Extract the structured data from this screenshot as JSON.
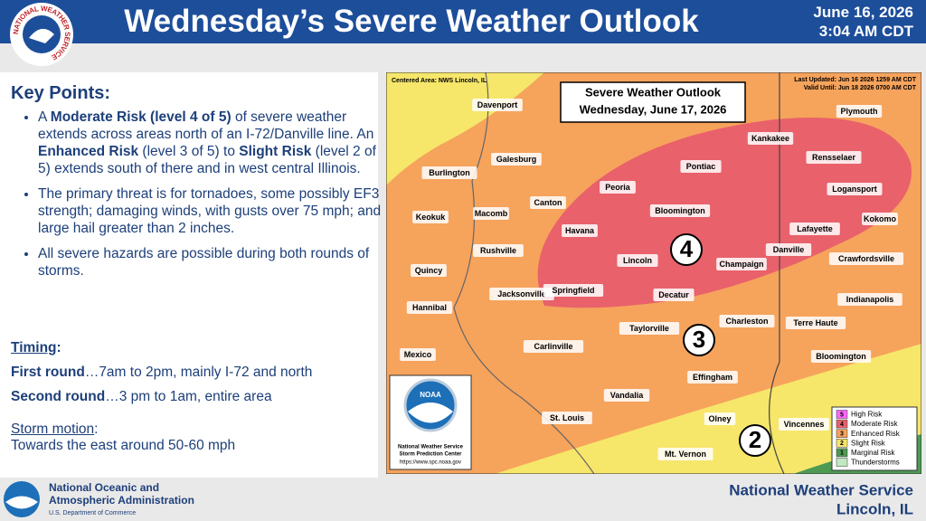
{
  "header": {
    "logo_text": "NATIONAL WEATHER SERVICE",
    "title": "Wednesday’s Severe Weather Outlook",
    "date": "June 16, 2026",
    "time": "3:04 AM CDT"
  },
  "key_points": {
    "heading": "Key Points:",
    "bullets": [
      [
        {
          "text": "A ",
          "bold": false
        },
        {
          "text": "Moderate Risk (level 4 of 5)",
          "bold": true
        },
        {
          "text": " of severe weather extends across areas north of an I-72/Danville line. An ",
          "bold": false
        },
        {
          "text": "Enhanced Risk",
          "bold": true
        },
        {
          "text": " (level 3 of 5) to ",
          "bold": false
        },
        {
          "text": "Slight Risk",
          "bold": true
        },
        {
          "text": " (level 2 of 5) extends south of there and in west central Illinois.",
          "bold": false
        }
      ],
      [
        {
          "text": "The primary threat is for tornadoes, some possibly EF3 strength; damaging winds, with gusts over 75 mph; and large hail greater than 2 inches.",
          "bold": false
        }
      ],
      [
        {
          "text": "All severe hazards are possible during both rounds of storms.",
          "bold": false
        }
      ]
    ]
  },
  "details": [
    [
      {
        "text": "Timing",
        "bold": true,
        "underline": true
      },
      {
        "text": ":",
        "bold": true
      }
    ],
    [
      {
        "text": "First round",
        "bold": true
      },
      {
        "text": "…7am to 2pm, mainly I-72 and north",
        "bold": false
      }
    ],
    [
      {
        "text": "Second round",
        "bold": true
      },
      {
        "text": "…3 pm to 1am, entire area",
        "bold": false
      }
    ],
    [
      {
        "text": "Storm motion",
        "bold": false,
        "underline": true
      },
      {
        "text": ":",
        "bold": false
      }
    ],
    [
      {
        "text": "Towards the east around 50-60 mph",
        "bold": false
      }
    ]
  ],
  "map": {
    "centered_area": "Centered Area: NWS Lincoln, IL",
    "last_updated": "Last Updated: Jun 16 2026 1259 AM CDT",
    "valid_until": "Valid Until: Jun 18 2026 0700 AM CDT",
    "title": "Severe Weather Outlook",
    "subtitle": "Wednesday, June 17, 2026",
    "cities": [
      "Davenport",
      "Galesburg",
      "Burlington",
      "Canton",
      "Peoria",
      "Kankakee",
      "Pontiac",
      "Rensselaer",
      "Plymouth",
      "Logansport",
      "Bloomington",
      "Macomb",
      "Keokuk",
      "Havana",
      "Kokomo",
      "Lafayette",
      "Rushville",
      "Danville",
      "Lincoln",
      "Champaign",
      "Crawfordsville",
      "Quincy",
      "Jacksonville",
      "Springfield",
      "Decatur",
      "Indianapolis",
      "Hannibal",
      "Charleston",
      "Taylorville",
      "Terre Haute",
      "Carlinville",
      "Mexico",
      "Bloomington",
      "Effingham",
      "Vandalia",
      "St. Louis",
      "Olney",
      "Vincennes",
      "Mt. Vernon"
    ],
    "risk_labels": [
      "4",
      "3",
      "2"
    ],
    "legend": [
      {
        "number": "5",
        "label": "High Risk",
        "color": "#ff66ff"
      },
      {
        "number": "4",
        "label": "Moderate Risk",
        "color": "#e8616b"
      },
      {
        "number": "3",
        "label": "Enhanced Risk",
        "color": "#f6a35c"
      },
      {
        "number": "2",
        "label": "Slight Risk",
        "color": "#f6e66a"
      },
      {
        "number": "1",
        "label": "Marginal Risk",
        "color": "#4d9a53"
      },
      {
        "label": "Thunderstorms",
        "color": "#c1e9c1"
      }
    ],
    "logo": {
      "name": "NOAA",
      "line1": "National Weather Service",
      "line2": "Storm Prediction Center",
      "url": "https://www.spc.noaa.gov"
    }
  },
  "footer": {
    "org_line1": "National Oceanic and",
    "org_line2": "Atmospheric Administration",
    "dept": "U.S. Department of Commerce",
    "office": "National Weather Service",
    "location": "Lincoln, IL"
  }
}
